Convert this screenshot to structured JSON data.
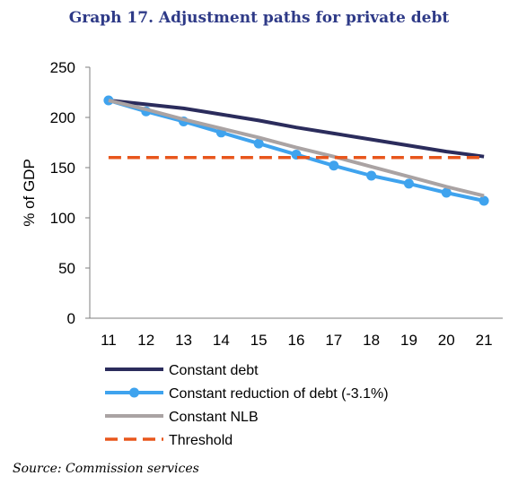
{
  "title": "Graph 17. Adjustment paths for private debt",
  "source": "Source: Commission services",
  "chart_data": {
    "type": "line",
    "x": [
      11,
      12,
      13,
      14,
      15,
      16,
      17,
      18,
      19,
      20,
      21
    ],
    "ylabel": "% of GDP",
    "ylim": [
      0,
      250
    ],
    "yticks": [
      0,
      50,
      100,
      150,
      200,
      250
    ],
    "legend_position": "bottom",
    "series": [
      {
        "name": "Constant debt",
        "color": "#2b2c5c",
        "markers": false,
        "dashed": false,
        "values": [
          217,
          213,
          209,
          203,
          197,
          190,
          184,
          178,
          172,
          166,
          161
        ]
      },
      {
        "name": "Constant reduction of debt (-3.1%)",
        "color": "#3fa3ee",
        "markers": true,
        "dashed": false,
        "values": [
          217,
          206,
          196,
          185,
          174,
          163,
          152,
          142,
          134,
          125,
          117
        ]
      },
      {
        "name": "Constant NLB",
        "color": "#aaa3a3",
        "markers": false,
        "dashed": false,
        "values": [
          217,
          208,
          198,
          189,
          180,
          170,
          161,
          151,
          141,
          131,
          122
        ]
      },
      {
        "name": "Threshold",
        "color": "#e8561c",
        "markers": false,
        "dashed": true,
        "values": [
          160,
          160,
          160,
          160,
          160,
          160,
          160,
          160,
          160,
          160,
          160
        ]
      }
    ]
  }
}
